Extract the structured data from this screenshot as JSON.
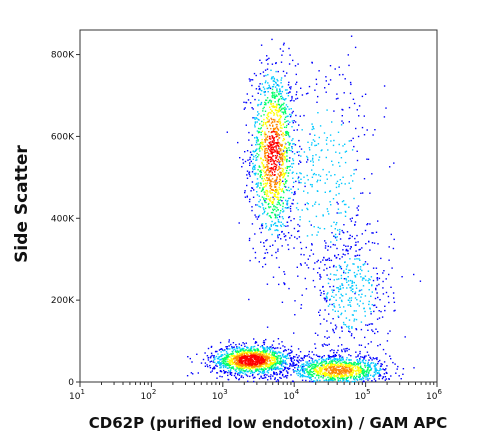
{
  "chart_data": {
    "type": "scatter",
    "subtype": "flow-cytometry-density-dot-plot",
    "xlabel": "CD62P (purified low endotoxin) / GAM APC",
    "ylabel": "Side Scatter",
    "x_scale": "log",
    "xlim": [
      10,
      1000000
    ],
    "ylim": [
      0,
      860000
    ],
    "x_ticks": [
      {
        "value": 10,
        "base": "10",
        "exp": "1"
      },
      {
        "value": 100,
        "base": "10",
        "exp": "2"
      },
      {
        "value": 1000,
        "base": "10",
        "exp": "3"
      },
      {
        "value": 10000,
        "base": "10",
        "exp": "4"
      },
      {
        "value": 100000,
        "base": "10",
        "exp": "5"
      },
      {
        "value": 1000000,
        "base": "10",
        "exp": "6"
      }
    ],
    "y_ticks": [
      {
        "value": 0,
        "label": "0"
      },
      {
        "value": 200000,
        "label": "200K"
      },
      {
        "value": 400000,
        "label": "400K"
      },
      {
        "value": 600000,
        "label": "600K"
      },
      {
        "value": 800000,
        "label": "800K"
      }
    ],
    "populations": [
      {
        "center_x": 5000,
        "center_y": 560000,
        "spread_log_x": 0.16,
        "spread_y": 110000,
        "density": 0.9
      },
      {
        "center_x": 2500,
        "center_y": 55000,
        "spread_log_x": 0.28,
        "spread_y": 18000,
        "density": 1.0
      },
      {
        "center_x": 40000,
        "center_y": 30000,
        "spread_log_x": 0.35,
        "spread_y": 18000,
        "density": 0.75
      },
      {
        "center_x": 60000,
        "center_y": 220000,
        "spread_log_x": 0.3,
        "spread_y": 80000,
        "density": 0.3
      },
      {
        "center_x": 25000,
        "center_y": 500000,
        "spread_log_x": 0.4,
        "spread_y": 150000,
        "density": 0.3
      }
    ],
    "grid": false,
    "legend": "none",
    "colormap": [
      "#0000ff",
      "#00c8ff",
      "#00ff66",
      "#ffff00",
      "#ff8800",
      "#ff0000"
    ]
  }
}
